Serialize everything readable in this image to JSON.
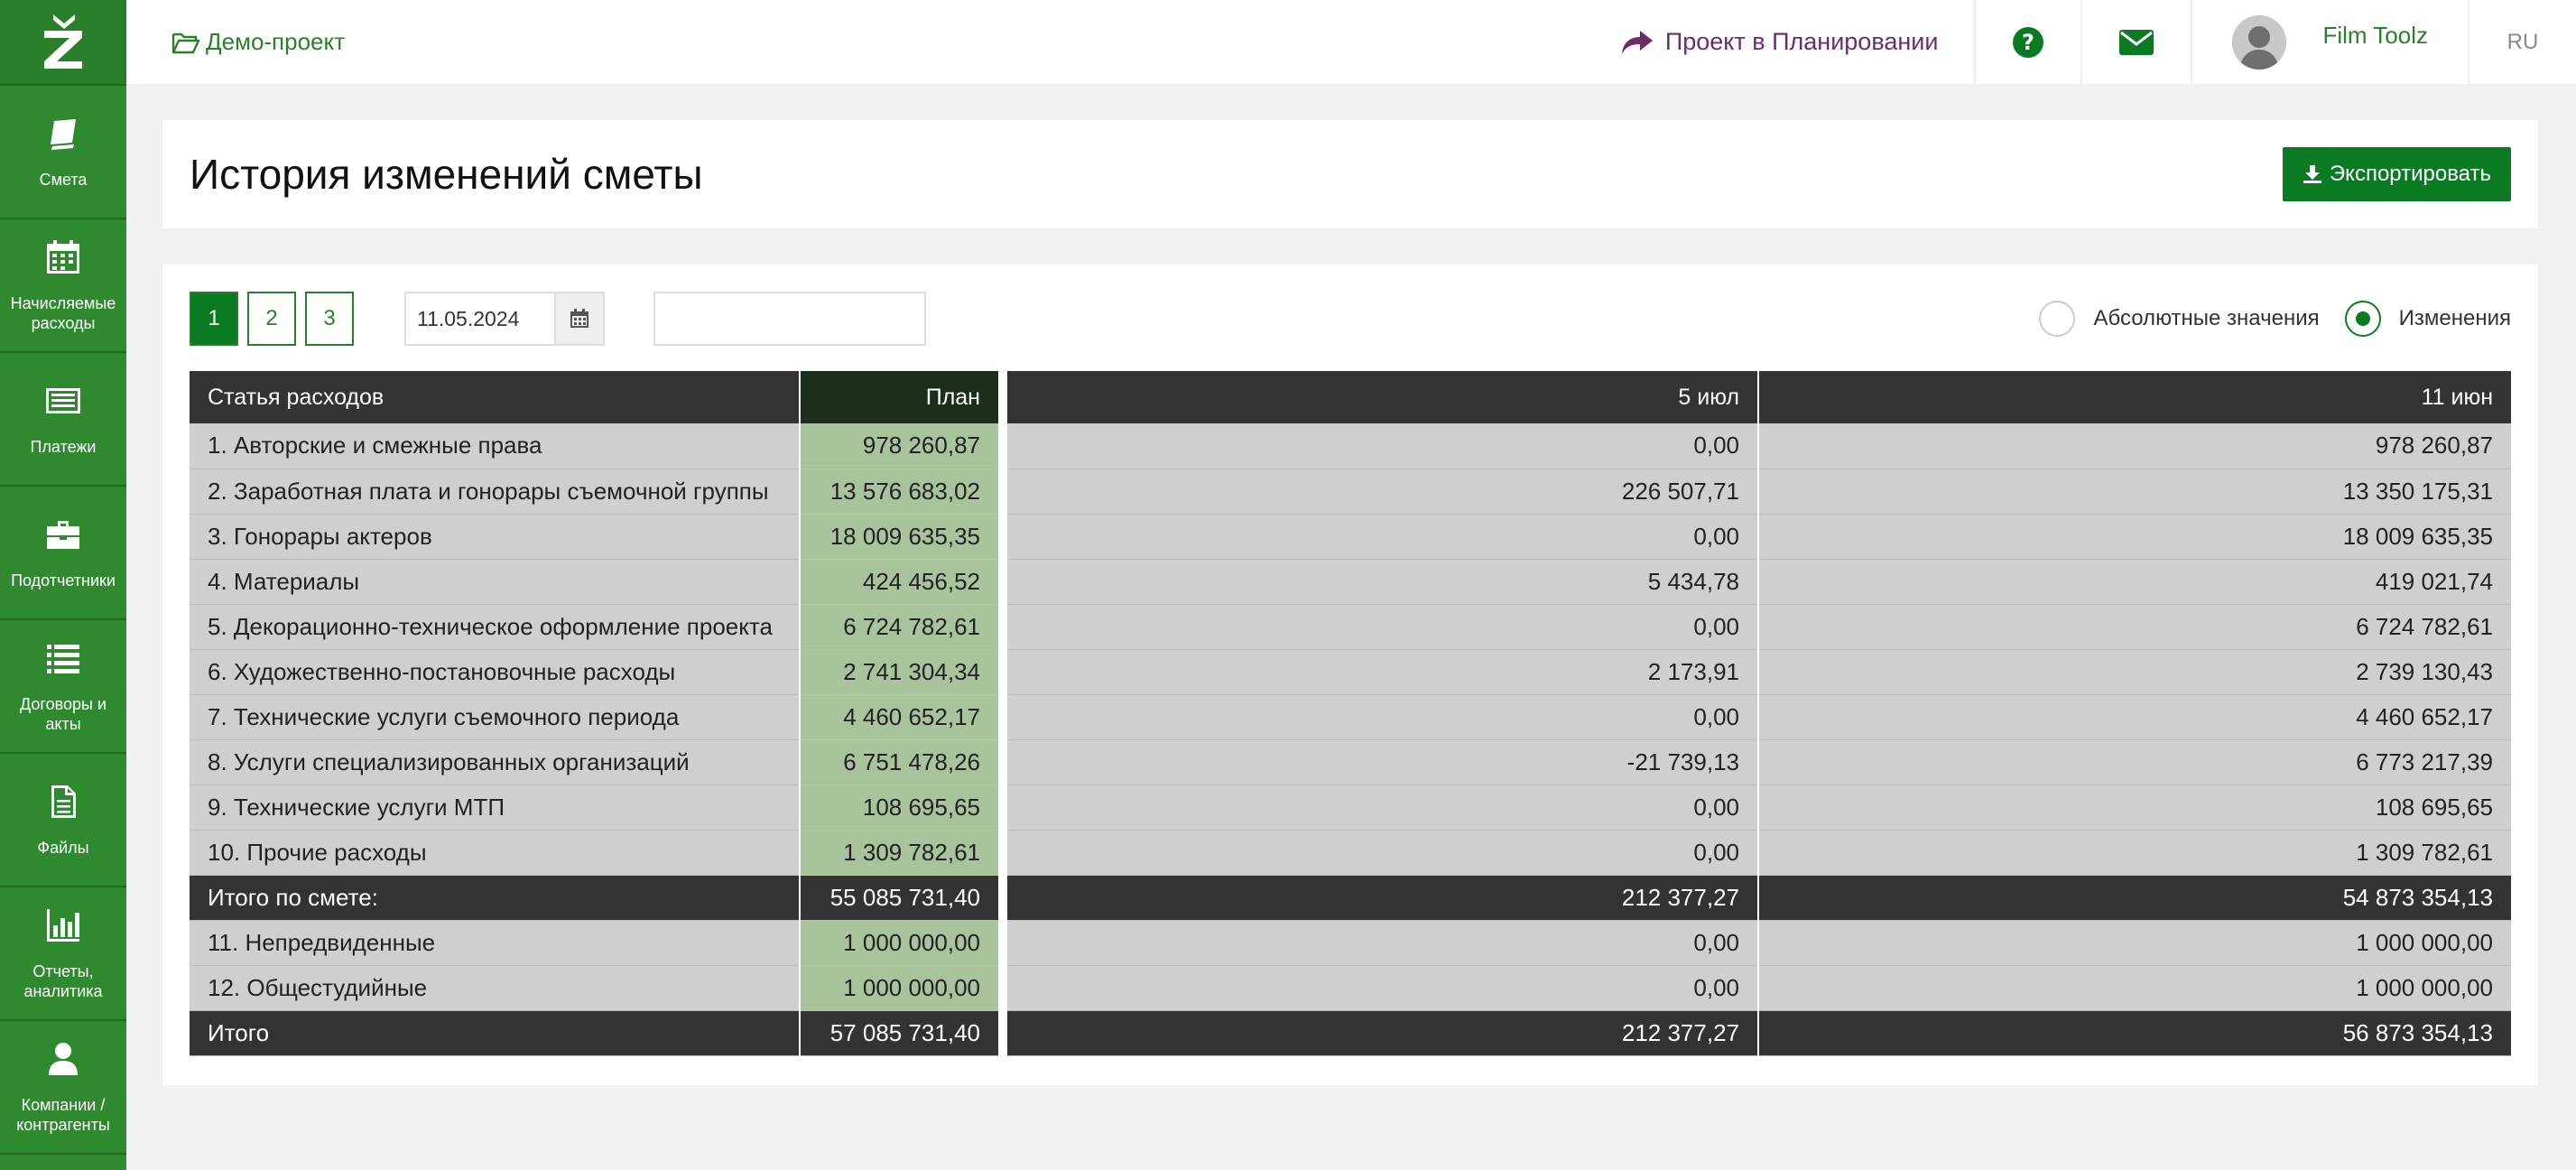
{
  "sidebar": {
    "items": [
      {
        "label": "Смета",
        "icon": "book-icon"
      },
      {
        "label": "Начисляемые расходы",
        "icon": "calendar-icon"
      },
      {
        "label": "Платежи",
        "icon": "list-icon"
      },
      {
        "label": "Подотчетники",
        "icon": "briefcase-icon"
      },
      {
        "label": "Договоры и акты",
        "icon": "lines-icon"
      },
      {
        "label": "Файлы",
        "icon": "file-icon"
      },
      {
        "label": "Отчеты, аналитика",
        "icon": "bar-chart-icon"
      },
      {
        "label": "Компании / контрагенты",
        "icon": "user-icon"
      }
    ]
  },
  "topbar": {
    "project": "Демо-проект",
    "planning": "Проект в Планировании",
    "user": "Film Toolz",
    "lang": "RU"
  },
  "header": {
    "title": "История изменений сметы",
    "export": "Экспортировать"
  },
  "controls": {
    "pages": [
      "1",
      "2",
      "3"
    ],
    "active_page": "1",
    "date": "11.05.2024",
    "search_placeholder": "",
    "radio_absolute": "Абсолютные значения",
    "radio_changes": "Изменения",
    "selected_mode": "Изменения"
  },
  "table": {
    "headers": [
      "Статья расходов",
      "План",
      "5 июл",
      "11 июн"
    ],
    "rows": [
      [
        "1. Авторские и смежные права",
        "978 260,87",
        "0,00",
        "978 260,87"
      ],
      [
        "2. Заработная плата и гонорары съемочной группы",
        "13 576 683,02",
        "226 507,71",
        "13 350 175,31"
      ],
      [
        "3. Гонорары актеров",
        "18 009 635,35",
        "0,00",
        "18 009 635,35"
      ],
      [
        "4. Материалы",
        "424 456,52",
        "5 434,78",
        "419 021,74"
      ],
      [
        "5. Декорационно-техническое оформление проекта",
        "6 724 782,61",
        "0,00",
        "6 724 782,61"
      ],
      [
        "6. Художественно-постановочные расходы",
        "2 741 304,34",
        "2 173,91",
        "2 739 130,43"
      ],
      [
        "7. Технические услуги съемочного периода",
        "4 460 652,17",
        "0,00",
        "4 460 652,17"
      ],
      [
        "8. Услуги специализированных организаций",
        "6 751 478,26",
        "-21 739,13",
        "6 773 217,39"
      ],
      [
        "9. Технические услуги МТП",
        "108 695,65",
        "0,00",
        "108 695,65"
      ],
      [
        "10. Прочие расходы",
        "1 309 782,61",
        "0,00",
        "1 309 782,61"
      ]
    ],
    "subtotal": [
      "Итого по смете:",
      "55 085 731,40",
      "212 377,27",
      "54 873 354,13"
    ],
    "extra_rows": [
      [
        "11. Непредвиденные",
        "1 000 000,00",
        "0,00",
        "1 000 000,00"
      ],
      [
        "12. Общестудийные",
        "1 000 000,00",
        "0,00",
        "1 000 000,00"
      ]
    ],
    "total": [
      "Итого",
      "57 085 731,40",
      "212 377,27",
      "56 873 354,13"
    ]
  }
}
